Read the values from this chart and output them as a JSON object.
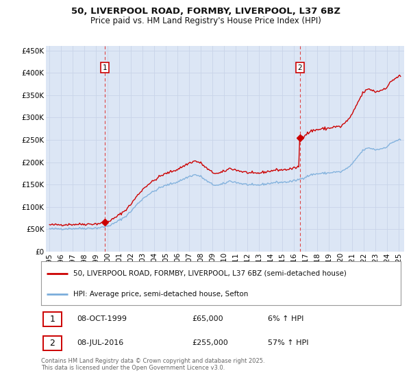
{
  "title1": "50, LIVERPOOL ROAD, FORMBY, LIVERPOOL, L37 6BZ",
  "title2": "Price paid vs. HM Land Registry's House Price Index (HPI)",
  "hpi_label": "HPI: Average price, semi-detached house, Sefton",
  "price_label": "50, LIVERPOOL ROAD, FORMBY, LIVERPOOL, L37 6BZ (semi-detached house)",
  "footer": "Contains HM Land Registry data © Crown copyright and database right 2025.\nThis data is licensed under the Open Government Licence v3.0.",
  "annotation1": {
    "num": "1",
    "date": "08-OCT-1999",
    "price": "£65,000",
    "pct": "6% ↑ HPI",
    "x_year": 1999.77,
    "y_val": 65000
  },
  "annotation2": {
    "num": "2",
    "date": "08-JUL-2016",
    "price": "£255,000",
    "pct": "57% ↑ HPI",
    "x_year": 2016.52,
    "y_val": 255000
  },
  "vline1_x": 1999.77,
  "vline2_x": 2016.52,
  "ylim": [
    0,
    460000
  ],
  "xlim_start": 1994.7,
  "xlim_end": 2025.5,
  "yticks": [
    0,
    50000,
    100000,
    150000,
    200000,
    250000,
    300000,
    350000,
    400000,
    450000
  ],
  "ytick_labels": [
    "£0",
    "£50K",
    "£100K",
    "£150K",
    "£200K",
    "£250K",
    "£300K",
    "£350K",
    "£400K",
    "£450K"
  ],
  "xtick_years": [
    1995,
    1996,
    1997,
    1998,
    1999,
    2000,
    2001,
    2002,
    2003,
    2004,
    2005,
    2006,
    2007,
    2008,
    2009,
    2010,
    2011,
    2012,
    2013,
    2014,
    2015,
    2016,
    2017,
    2018,
    2019,
    2020,
    2021,
    2022,
    2023,
    2024,
    2025
  ],
  "price_color": "#cc0000",
  "hpi_color": "#7aaddb",
  "bg_color": "#dce6f5",
  "grid_color": "#c8d4e8",
  "vline_color": "#dd4444",
  "annotation_box_color": "#cc0000",
  "legend_border_color": "#999999",
  "title1_fontsize": 9.5,
  "title2_fontsize": 8.5,
  "tick_fontsize": 7.5,
  "legend_fontsize": 7.5,
  "ann_fontsize": 8.0,
  "footer_fontsize": 6.0
}
